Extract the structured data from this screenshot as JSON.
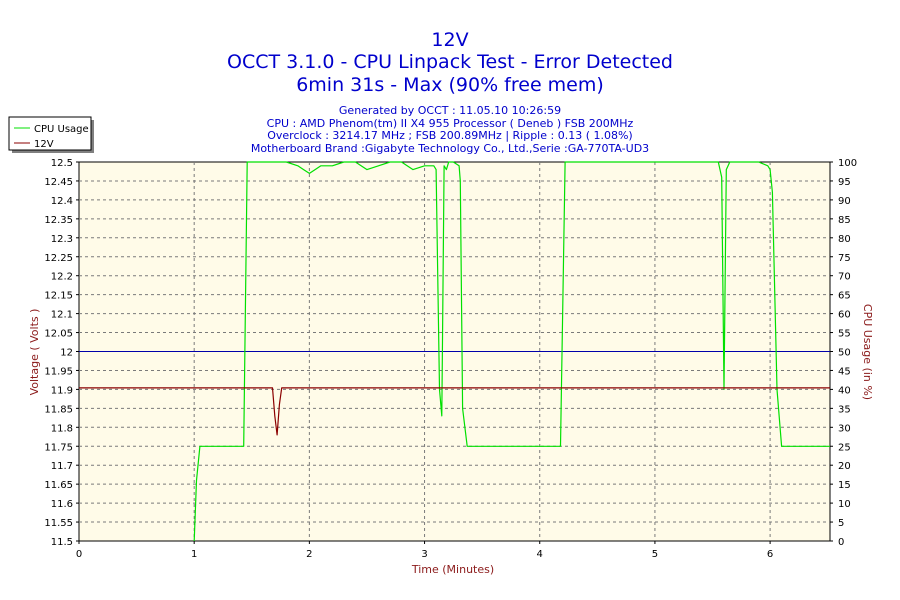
{
  "chart_data": {
    "type": "line",
    "title": "12V",
    "subtitle_lines": [
      "OCCT 3.1.0 - CPU Linpack Test - Error Detected",
      "6min 31s - Max (90% free mem)"
    ],
    "info_lines": [
      "Generated by OCCT : 11.05.10 10:26:59",
      "CPU : AMD Phenom(tm) II X4 955 Processor ( Deneb ) FSB 200MHz",
      "Overclock : 3214.17 MHz ; FSB 200.89MHz | Ripple : 0.13 ( 1.08%)",
      "Motherboard Brand :Gigabyte Technology Co., Ltd.,Serie :GA-770TA-UD3"
    ],
    "xlabel": "Time (Minutes)",
    "ylabel_left": "Voltage ( Volts )",
    "ylabel_right": "CPU Usage (in %)",
    "xlim": [
      0,
      6.52
    ],
    "ylim_left": [
      11.5,
      12.5
    ],
    "ylim_right": [
      0,
      100
    ],
    "x_ticks": [
      "0",
      "1",
      "2",
      "3",
      "4",
      "5",
      "6"
    ],
    "y_left_ticks": [
      "11.5",
      "11.55",
      "11.6",
      "11.65",
      "11.7",
      "11.75",
      "11.8",
      "11.85",
      "11.9",
      "11.95",
      "12",
      "12.05",
      "12.1",
      "12.15",
      "12.2",
      "12.25",
      "12.3",
      "12.35",
      "12.4",
      "12.45",
      "12.5"
    ],
    "y_right_ticks": [
      "0",
      "5",
      "10",
      "15",
      "20",
      "25",
      "30",
      "35",
      "40",
      "45",
      "50",
      "55",
      "60",
      "65",
      "70",
      "75",
      "80",
      "85",
      "90",
      "95",
      "100"
    ],
    "grid": true,
    "legend_position": "top-left",
    "reference_line": {
      "y": 12,
      "color": "#0000aa"
    },
    "series": [
      {
        "name": "CPU Usage",
        "axis": "right",
        "color": "#00e000",
        "x": [
          1.0,
          1.02,
          1.05,
          1.1,
          1.43,
          1.46,
          1.5,
          1.55,
          1.6,
          1.7,
          1.8,
          1.9,
          1.95,
          2.0,
          2.05,
          2.1,
          2.2,
          2.3,
          2.4,
          2.5,
          2.6,
          2.7,
          2.8,
          2.9,
          3.0,
          3.08,
          3.1,
          3.13,
          3.15,
          3.17,
          3.19,
          3.21,
          3.25,
          3.3,
          3.31,
          3.33,
          3.37,
          3.5,
          4.0,
          4.18,
          4.22,
          4.25,
          4.4,
          4.6,
          4.8,
          5.0,
          5.2,
          5.4,
          5.55,
          5.58,
          5.6,
          5.62,
          5.65,
          5.7,
          5.8,
          5.9,
          5.98,
          6.0,
          6.02,
          6.06,
          6.1,
          6.3,
          6.52
        ],
        "values": [
          0,
          16,
          25,
          25,
          25,
          100,
          100,
          100,
          100,
          100,
          100,
          99,
          98,
          97,
          98,
          99,
          99,
          100,
          100,
          98,
          99,
          100,
          100,
          98,
          99,
          99,
          98,
          40,
          33,
          99,
          98,
          100,
          100,
          99,
          95,
          35,
          25,
          25,
          25,
          25,
          100,
          100,
          100,
          100,
          100,
          100,
          100,
          100,
          100,
          96,
          40,
          98,
          100,
          100,
          100,
          100,
          99,
          98,
          92,
          40,
          25,
          25,
          25
        ]
      },
      {
        "name": "12V",
        "axis": "left",
        "color": "#8b0000",
        "x": [
          0.0,
          1.0,
          1.68,
          1.7,
          1.72,
          1.74,
          1.76,
          6.52
        ],
        "values": [
          11.904,
          11.904,
          11.904,
          11.83,
          11.78,
          11.86,
          11.904,
          11.904
        ]
      }
    ]
  }
}
